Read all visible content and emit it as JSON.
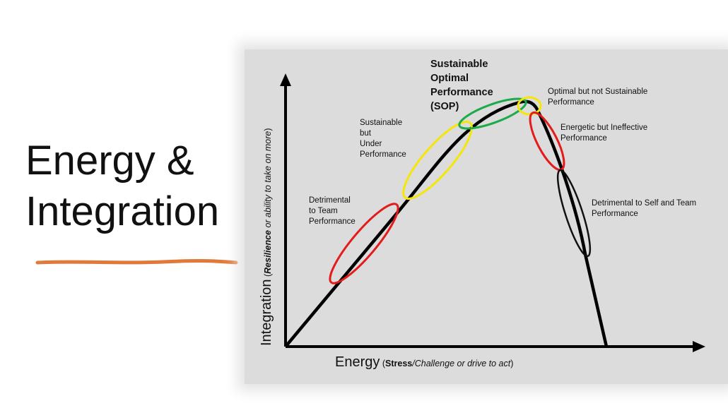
{
  "slide": {
    "title_line1": "Energy &",
    "title_line2": "Integration",
    "underline_color": "#e07a3a"
  },
  "diagram": {
    "sop_label": [
      "Sustainable",
      "Optimal",
      "Performance",
      "(SOP)"
    ],
    "labels": {
      "optimal_not_sustainable": [
        "Optimal but not  Sustainable",
        "Performance"
      ],
      "energetic_ineffective": [
        "Energetic but Ineffective",
        "Performance"
      ],
      "detrimental_self_team": [
        "Detrimental to Self and Team",
        "Performance"
      ],
      "sustainable_under": [
        "Sustainable",
        "but",
        "Under",
        "Performance"
      ],
      "detrimental_team": [
        "Detrimental",
        "to Team",
        "Performance"
      ]
    },
    "x_axis": {
      "main": "Energy",
      "open_paren": " (",
      "bold": "Stress",
      "italic": "/Challenge or drive to act",
      "close_paren": ")"
    },
    "y_axis": {
      "main": "Integration",
      "open_paren": " (",
      "bold_italic": "Resilience",
      "italic": " or ability to take on more",
      "close_paren": ")"
    },
    "zone_colors": {
      "red": "#e31b1b",
      "yellow": "#f5e60a",
      "green": "#1daa48",
      "black": "#111111"
    }
  }
}
